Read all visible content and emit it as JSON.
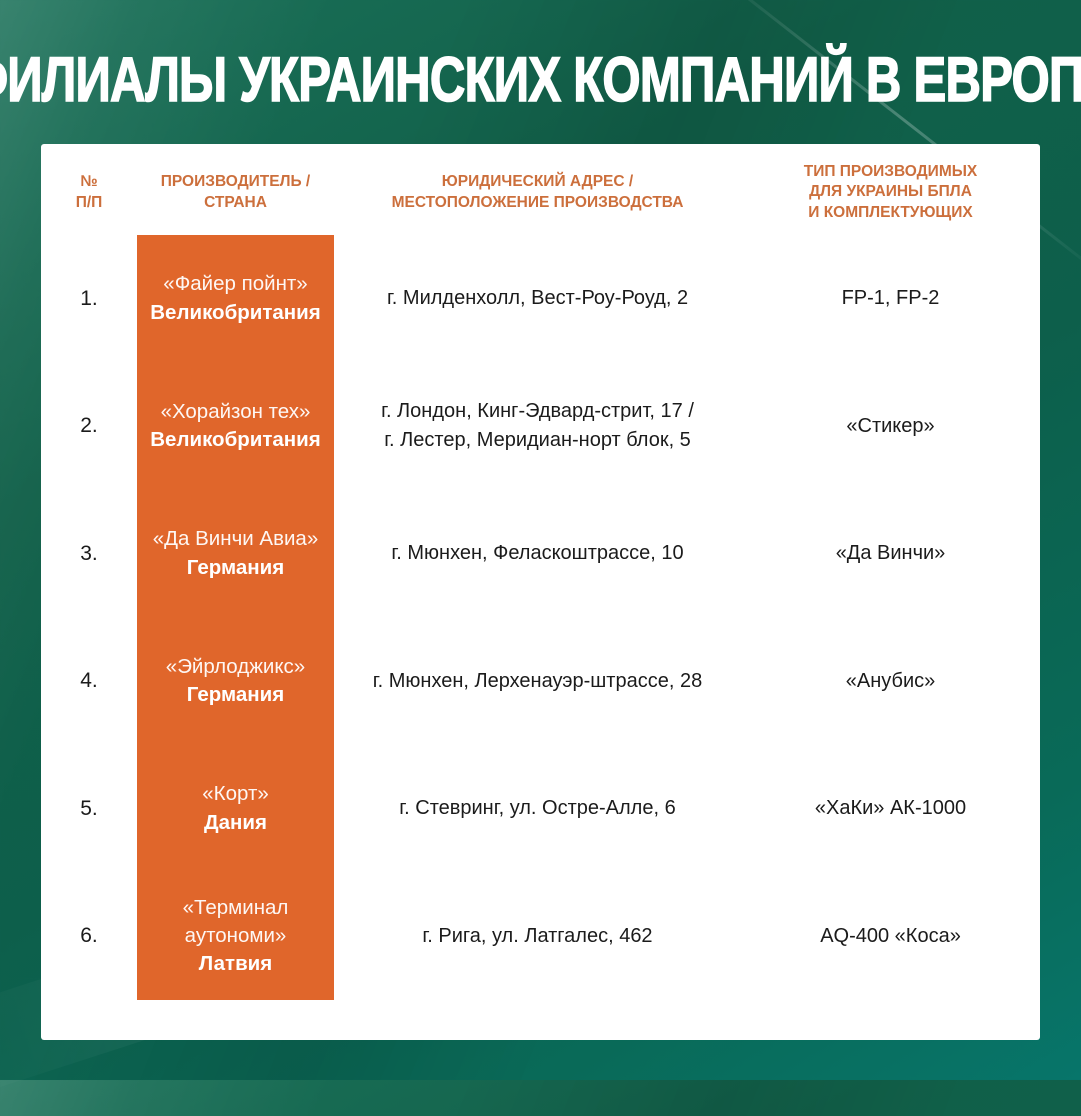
{
  "title": "ФИЛИАЛЫ УКРАИНСКИХ КОМПАНИЙ В ЕВРОПЕ",
  "colors": {
    "background_green": "#0E6350",
    "background_green_light": "#1B7159",
    "background_teal": "#07756A",
    "card_white": "#FFFFFF",
    "accent_orange": "#E0662B",
    "header_text_orange": "#CC6F3C",
    "body_text": "#1B1B1B",
    "title_text": "#FFFFFF"
  },
  "table": {
    "headers": {
      "num": "№\nП/П",
      "producer": "ПРОИЗВОДИТЕЛЬ /\nСТРАНА",
      "address": "ЮРИДИЧЕСКИЙ АДРЕС /\nМЕСТОПОЛОЖЕНИЕ ПРОИЗВОДСТВА",
      "type": "ТИП ПРОИЗВОДИМЫХ\nДЛЯ УКРАИНЫ БПЛА\nИ КОМПЛЕКТУЮЩИХ"
    }
  },
  "chart_data": {
    "type": "table",
    "title": "ФИЛИАЛЫ УКРАИНСКИХ КОМПАНИЙ В ЕВРОПЕ",
    "columns": [
      "№ П/П",
      "ПРОИЗВОДИТЕЛЬ / СТРАНА",
      "ЮРИДИЧЕСКИЙ АДРЕС / МЕСТОПОЛОЖЕНИЕ ПРОИЗВОДСТВА",
      "ТИП ПРОИЗВОДИМЫХ ДЛЯ УКРАИНЫ БПЛА И КОМПЛЕКТУЮЩИХ"
    ],
    "rows": [
      {
        "num": "1.",
        "company": "«Файер пойнт»",
        "country": "Великобритания",
        "address": "г. Милденхолл, Вест-Роу-Роуд, 2",
        "type": "FP-1, FP-2"
      },
      {
        "num": "2.",
        "company": "«Хорайзон тех»",
        "country": "Великобритания",
        "address": "г. Лондон, Кинг-Эдвард-стрит, 17 /\nг. Лестер, Меридиан-норт блок, 5",
        "type": "«Стикер»"
      },
      {
        "num": "3.",
        "company": "«Да Винчи Авиа»",
        "country": "Германия",
        "address": "г. Мюнхен, Феласкоштрассе, 10",
        "type": "«Да Винчи»"
      },
      {
        "num": "4.",
        "company": "«Эйрлоджикс»",
        "country": "Германия",
        "address": "г. Мюнхен, Лерхенауэр-штрассе, 28",
        "type": "«Анубис»"
      },
      {
        "num": "5.",
        "company": "«Корт»",
        "country": "Дания",
        "address": "г. Стевринг, ул. Остре-Алле, 6",
        "type": "«ХаКи» АК-1000"
      },
      {
        "num": "6.",
        "company": "«Терминал аутономи»",
        "country": "Латвия",
        "address": "г. Рига, ул. Латгалес, 462",
        "type": "AQ-400 «Коса»"
      }
    ]
  }
}
